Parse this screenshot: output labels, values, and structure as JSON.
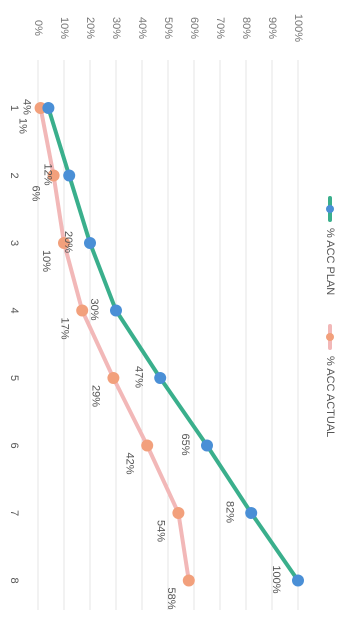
{
  "chart_data": {
    "type": "line",
    "orientation": "rotated-90-clockwise",
    "categories": [
      "1",
      "2",
      "3",
      "4",
      "5",
      "6",
      "7",
      "8"
    ],
    "y_ticks": [
      "0%",
      "10%",
      "20%",
      "30%",
      "40%",
      "50%",
      "60%",
      "70%",
      "80%",
      "90%",
      "100%"
    ],
    "ylim": [
      0,
      100
    ],
    "grid": true,
    "legend_position": "top-right",
    "series": [
      {
        "name": "% ACC PLAN",
        "color": "#3aaf8c",
        "marker_color": "#4a8fd6",
        "values": [
          4,
          12,
          20,
          30,
          47,
          65,
          82,
          100
        ],
        "labels": [
          "4%",
          "12%",
          "20%",
          "30%",
          "47%",
          "65%",
          "82%",
          "100%"
        ]
      },
      {
        "name": "% ACC ACTUAL",
        "color": "#f2b8b8",
        "marker_color": "#f2a07c",
        "values": [
          1,
          6,
          10,
          17,
          29,
          42,
          54,
          58
        ],
        "labels": [
          "1%",
          "6%",
          "10%",
          "17%",
          "29%",
          "42%",
          "54%",
          "58%"
        ]
      }
    ]
  }
}
